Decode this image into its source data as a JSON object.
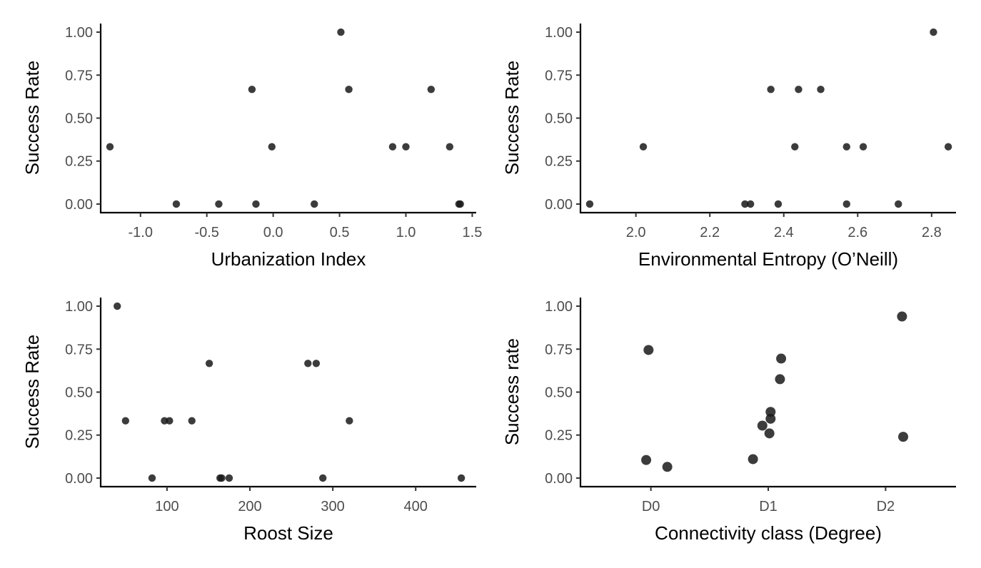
{
  "chart_data": [
    {
      "type": "scatter",
      "xlabel": "Urbanization Index",
      "ylabel": "Success Rate",
      "xlim": [
        -1.3,
        1.53
      ],
      "ylim": [
        -0.05,
        1.05
      ],
      "xticks": [
        -1.0,
        -0.5,
        0.0,
        0.5,
        1.0,
        1.5
      ],
      "xtick_labels": [
        "-1.0",
        "-0.5",
        "0.0",
        "0.5",
        "1.0",
        "1.5"
      ],
      "yticks": [
        0,
        0.25,
        0.5,
        0.75,
        1.0
      ],
      "ytick_labels": [
        "0.00",
        "0.25",
        "0.50",
        "0.75",
        "1.00"
      ],
      "grid": false,
      "x": [
        -1.23,
        -0.73,
        -0.41,
        -0.16,
        -0.13,
        -0.01,
        0.31,
        0.51,
        0.57,
        0.9,
        1.0,
        1.19,
        1.33,
        1.4,
        1.41
      ],
      "y": [
        0.333,
        0,
        0,
        0.667,
        0,
        0.333,
        0,
        1.0,
        0.667,
        0.333,
        0.333,
        0.667,
        0.333,
        0,
        0
      ]
    },
    {
      "type": "scatter",
      "xlabel": "Environmental Entropy (O’Neill)",
      "ylabel": "Success Rate",
      "xlim": [
        1.85,
        2.866
      ],
      "ylim": [
        -0.05,
        1.05
      ],
      "xticks": [
        2.0,
        2.2,
        2.4,
        2.6,
        2.8
      ],
      "xtick_labels": [
        "2.0",
        "2.2",
        "2.4",
        "2.6",
        "2.8"
      ],
      "yticks": [
        0,
        0.25,
        0.5,
        0.75,
        1.0
      ],
      "ytick_labels": [
        "0.00",
        "0.25",
        "0.50",
        "0.75",
        "1.00"
      ],
      "grid": false,
      "x": [
        1.875,
        2.02,
        2.295,
        2.31,
        2.365,
        2.385,
        2.43,
        2.44,
        2.5,
        2.57,
        2.57,
        2.615,
        2.71,
        2.805,
        2.845
      ],
      "y": [
        0,
        0.333,
        0,
        0,
        0.667,
        0,
        0.333,
        0.667,
        0.667,
        0.333,
        0,
        0.333,
        0,
        1.0,
        0.333
      ]
    },
    {
      "type": "scatter",
      "xlabel": "Roost Size",
      "ylabel": "Success Rate",
      "xlim": [
        20,
        473
      ],
      "ylim": [
        -0.05,
        1.05
      ],
      "xticks": [
        100,
        200,
        300,
        400
      ],
      "xtick_labels": [
        "100",
        "200",
        "300",
        "400"
      ],
      "yticks": [
        0,
        0.25,
        0.5,
        0.75,
        1.0
      ],
      "ytick_labels": [
        "0.00",
        "0.25",
        "0.50",
        "0.75",
        "1.00"
      ],
      "grid": false,
      "x": [
        40,
        50,
        82,
        97,
        103,
        130,
        151,
        164,
        166,
        175,
        270,
        280,
        288,
        320,
        455
      ],
      "y": [
        1.0,
        0.333,
        0,
        0.333,
        0.333,
        0.333,
        0.667,
        0,
        0,
        0,
        0.667,
        0.667,
        0,
        0.333,
        0
      ]
    },
    {
      "type": "scatter",
      "xlabel": "Connectivity class (Degree)",
      "ylabel": "Success rate",
      "xlim": [
        0.4,
        3.6
      ],
      "ylim": [
        -0.05,
        1.05
      ],
      "xticks": [
        1,
        2,
        3
      ],
      "xtick_labels": [
        "D0",
        "D1",
        "D2"
      ],
      "yticks": [
        0,
        0.25,
        0.5,
        0.75,
        1.0
      ],
      "ytick_labels": [
        "0.00",
        "0.25",
        "0.50",
        "0.75",
        "1.00"
      ],
      "grid": false,
      "x": [
        0.96,
        0.98,
        1.14,
        1.87,
        1.95,
        2.01,
        2.02,
        2.02,
        2.1,
        2.11,
        3.14,
        3.15
      ],
      "y": [
        0.105,
        0.745,
        0.065,
        0.11,
        0.305,
        0.26,
        0.345,
        0.385,
        0.575,
        0.695,
        0.94,
        0.24
      ]
    }
  ]
}
